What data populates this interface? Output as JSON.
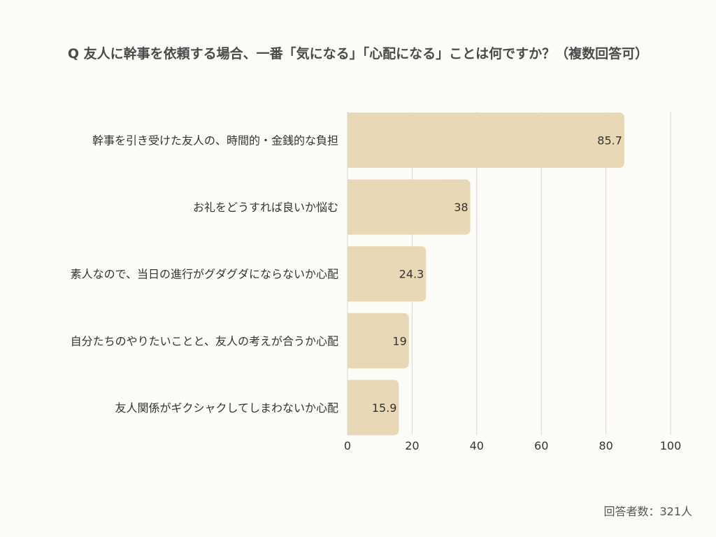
{
  "chart_data": {
    "type": "bar",
    "orientation": "horizontal",
    "title": "Q 友人に幹事を依頼する場合、一番「気になる」「心配になる」ことは何ですか？（複数回答可）",
    "categories": [
      "幹事を引き受けた友人の、時間的・金銭的な負担",
      "お礼をどうすれば良いか悩む",
      "素人なので、当日の進行がグダグダにならないか心配",
      "自分たちのやりたいことと、友人の考えが合うか心配",
      "友人関係がギクシャクしてしまわないか心配"
    ],
    "values": [
      85.7,
      38,
      24.3,
      19,
      15.9
    ],
    "value_labels": [
      "85.7",
      "38",
      "24.3",
      "19",
      "15.9"
    ],
    "xlim": [
      0,
      100
    ],
    "xticks": [
      0,
      20,
      40,
      60,
      80,
      100
    ],
    "grid": true,
    "bar_color": "#e8d8b5"
  },
  "footnote": "回答者数：321人"
}
